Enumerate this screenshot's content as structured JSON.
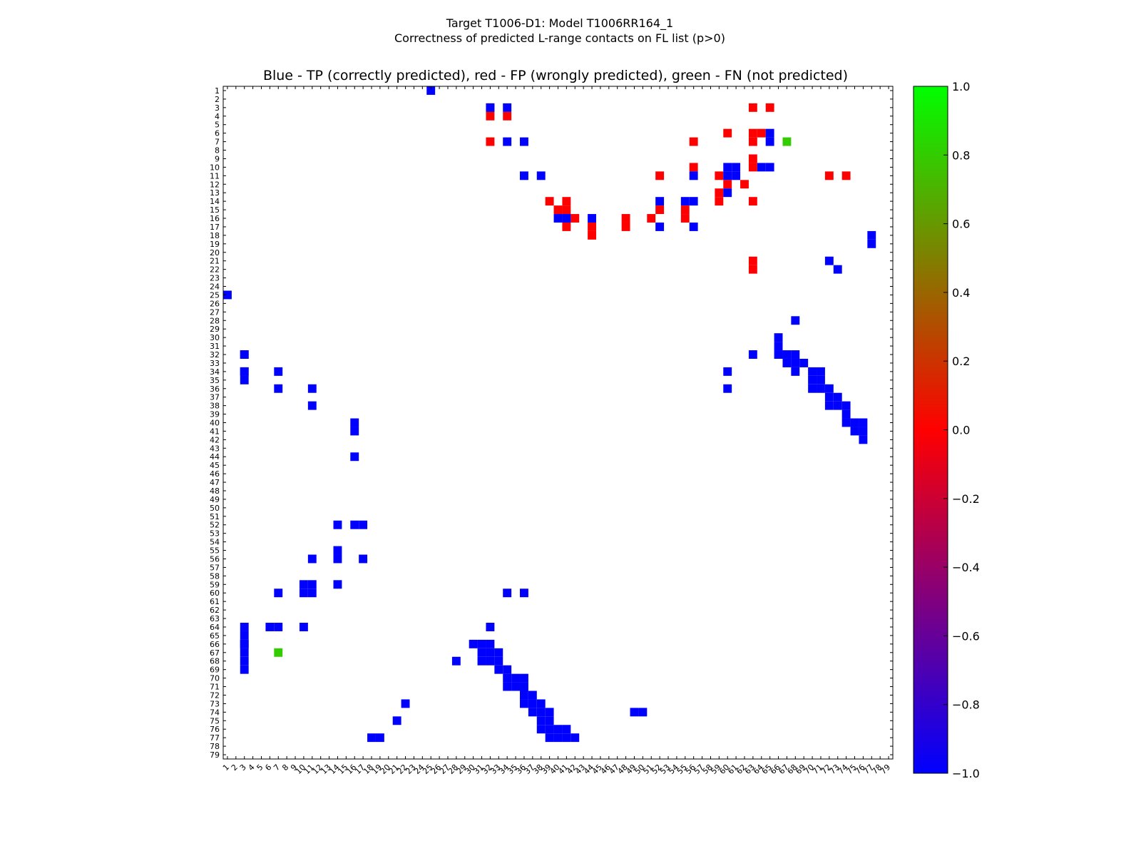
{
  "figure": {
    "suptitle_line1": "Target T1006-D1: Model T1006RR164_1",
    "suptitle_line2": "Correctness of predicted L-range contacts on FL list (p>0)"
  },
  "chart_data": {
    "type": "heatmap",
    "title": "Blue - TP (correctly predicted), red - FP (wrongly predicted), green - FN (not predicted)",
    "xlabel": "",
    "ylabel": "",
    "x_range": [
      1,
      79
    ],
    "y_range": [
      1,
      79
    ],
    "x_ticks": [
      1,
      2,
      3,
      4,
      5,
      6,
      7,
      8,
      9,
      10,
      11,
      12,
      13,
      14,
      15,
      16,
      17,
      18,
      19,
      20,
      21,
      22,
      23,
      24,
      25,
      26,
      27,
      28,
      29,
      30,
      31,
      32,
      33,
      34,
      35,
      36,
      37,
      38,
      39,
      40,
      41,
      42,
      43,
      44,
      45,
      46,
      47,
      48,
      49,
      50,
      51,
      52,
      53,
      54,
      55,
      56,
      57,
      58,
      59,
      60,
      61,
      62,
      63,
      64,
      65,
      66,
      67,
      68,
      69,
      70,
      71,
      72,
      73,
      74,
      75,
      76,
      77,
      78,
      79
    ],
    "y_ticks": [
      1,
      2,
      3,
      4,
      5,
      6,
      7,
      8,
      9,
      10,
      11,
      12,
      13,
      14,
      15,
      16,
      17,
      18,
      19,
      20,
      21,
      22,
      23,
      24,
      25,
      26,
      27,
      28,
      29,
      30,
      31,
      32,
      33,
      34,
      35,
      36,
      37,
      38,
      39,
      40,
      41,
      42,
      43,
      44,
      45,
      46,
      47,
      48,
      49,
      50,
      51,
      52,
      53,
      54,
      55,
      56,
      57,
      58,
      59,
      60,
      61,
      62,
      63,
      64,
      65,
      66,
      67,
      68,
      69,
      70,
      71,
      72,
      73,
      74,
      75,
      76,
      77,
      78,
      79
    ],
    "grid": false,
    "legend": "colorbar right",
    "colors": {
      "tp": "#0000ff",
      "fp": "#ff0000",
      "fn": "#33cc00"
    },
    "colorbar": {
      "min": -1.0,
      "max": 1.0,
      "ticks": [
        "1.0",
        "0.8",
        "0.6",
        "0.4",
        "0.2",
        "0.0",
        "−0.2",
        "−0.4",
        "−0.6",
        "−0.8",
        "−1.0"
      ],
      "stops": [
        "#00ff00",
        "#ff0000",
        "#0000ff"
      ]
    },
    "cells_tp": [
      [
        25,
        1
      ],
      [
        32,
        3
      ],
      [
        35,
        3
      ],
      [
        65,
        3
      ],
      [
        66,
        3
      ],
      [
        3,
        32
      ],
      [
        3,
        34
      ],
      [
        34,
        3
      ],
      [
        68,
        3
      ],
      [
        69,
        3
      ],
      [
        1,
        25
      ],
      [
        7,
        34
      ],
      [
        7,
        36
      ],
      [
        11,
        36
      ],
      [
        11,
        38
      ],
      [
        10,
        60
      ],
      [
        10,
        61
      ],
      [
        11,
        60
      ],
      [
        11,
        61
      ],
      [
        10,
        64
      ],
      [
        10,
        65
      ],
      [
        6,
        65
      ],
      [
        7,
        65
      ],
      [
        14,
        52
      ],
      [
        14,
        55
      ],
      [
        14,
        56
      ],
      [
        11,
        56
      ],
      [
        13,
        60
      ],
      [
        16,
        40
      ],
      [
        16,
        41
      ],
      [
        16,
        44
      ],
      [
        17,
        52
      ],
      [
        17,
        56
      ],
      [
        31,
        66
      ],
      [
        32,
        66
      ],
      [
        32,
        67
      ],
      [
        32,
        68
      ],
      [
        33,
        67
      ],
      [
        33,
        68
      ],
      [
        33,
        69
      ],
      [
        34,
        68
      ],
      [
        34,
        70
      ],
      [
        34,
        71
      ],
      [
        35,
        70
      ],
      [
        35,
        71
      ],
      [
        36,
        70
      ],
      [
        36,
        71
      ],
      [
        36,
        72
      ],
      [
        37,
        72
      ],
      [
        37,
        73
      ],
      [
        38,
        72
      ],
      [
        38,
        73
      ],
      [
        38,
        74
      ],
      [
        39,
        74
      ],
      [
        40,
        74
      ],
      [
        40,
        75
      ],
      [
        40,
        76
      ],
      [
        41,
        75
      ],
      [
        41,
        76
      ],
      [
        42,
        76
      ],
      [
        19,
        77
      ],
      [
        18,
        77
      ],
      [
        21,
        72
      ],
      [
        22,
        73
      ],
      [
        28,
        68
      ],
      [
        30,
        66
      ],
      [
        32,
        63
      ],
      [
        34,
        60
      ],
      [
        36,
        60
      ],
      [
        34,
        3
      ],
      [
        32,
        3
      ],
      [
        34,
        7
      ],
      [
        36,
        7
      ],
      [
        36,
        11
      ],
      [
        38,
        11
      ],
      [
        40,
        16
      ],
      [
        41,
        16
      ],
      [
        44,
        16
      ],
      [
        52,
        14
      ],
      [
        52,
        16
      ],
      [
        52,
        17
      ],
      [
        55,
        14
      ],
      [
        56,
        14
      ],
      [
        56,
        11
      ],
      [
        56,
        17
      ],
      [
        59,
        10
      ],
      [
        59,
        11
      ],
      [
        60,
        10
      ],
      [
        60,
        11
      ],
      [
        59,
        14
      ],
      [
        60,
        7
      ],
      [
        64,
        6
      ],
      [
        64,
        7
      ],
      [
        64,
        10
      ],
      [
        64,
        3
      ],
      [
        66,
        3
      ],
      [
        67,
        3
      ],
      [
        68,
        28
      ],
      [
        66,
        30
      ],
      [
        66,
        31
      ],
      [
        66,
        32
      ],
      [
        67,
        31
      ],
      [
        67,
        32
      ],
      [
        67,
        33
      ],
      [
        68,
        31
      ],
      [
        68,
        32
      ],
      [
        68,
        33
      ],
      [
        69,
        33
      ],
      [
        69,
        34
      ],
      [
        70,
        34
      ],
      [
        70,
        35
      ],
      [
        70,
        36
      ],
      [
        71,
        34
      ],
      [
        71,
        35
      ],
      [
        71,
        36
      ],
      [
        72,
        36
      ],
      [
        72,
        37
      ],
      [
        73,
        36
      ],
      [
        73,
        37
      ],
      [
        73,
        38
      ],
      [
        74,
        37
      ],
      [
        74,
        38
      ],
      [
        74,
        39
      ],
      [
        75,
        38
      ],
      [
        75,
        39
      ],
      [
        76,
        38
      ],
      [
        76,
        39
      ],
      [
        77,
        39
      ],
      [
        77,
        40
      ],
      [
        77,
        41
      ],
      [
        76,
        40
      ],
      [
        76,
        41
      ],
      [
        77,
        42
      ],
      [
        74,
        50
      ],
      [
        74,
        49
      ],
      [
        75,
        21
      ],
      [
        73,
        22
      ],
      [
        77,
        18
      ],
      [
        77,
        19
      ],
      [
        64,
        32
      ],
      [
        60,
        34
      ],
      [
        60,
        36
      ]
    ],
    "cells_fp": [
      [
        3,
        32
      ],
      [
        4,
        32
      ],
      [
        4,
        34
      ],
      [
        3,
        63
      ],
      [
        3,
        65
      ],
      [
        6,
        60
      ],
      [
        7,
        32
      ],
      [
        7,
        63
      ],
      [
        7,
        56
      ],
      [
        10,
        56
      ],
      [
        11,
        59
      ],
      [
        14,
        63
      ],
      [
        9,
        63
      ],
      [
        10,
        63
      ],
      [
        6,
        63
      ],
      [
        6,
        64
      ],
      [
        14,
        39
      ],
      [
        14,
        41
      ],
      [
        15,
        40
      ],
      [
        15,
        41
      ],
      [
        17,
        41
      ],
      [
        17,
        44
      ],
      [
        18,
        44
      ],
      [
        16,
        42
      ],
      [
        16,
        48
      ],
      [
        17,
        48
      ],
      [
        16,
        51
      ],
      [
        15,
        52
      ],
      [
        15,
        55
      ],
      [
        16,
        55
      ],
      [
        11,
        52
      ],
      [
        11,
        72
      ],
      [
        11,
        74
      ],
      [
        13,
        59
      ],
      [
        14,
        59
      ],
      [
        22,
        63
      ],
      [
        21,
        63
      ],
      [
        12,
        60
      ],
      [
        12,
        62
      ]
    ],
    "cells_fn": [
      [
        7,
        67
      ],
      [
        67,
        7
      ]
    ]
  }
}
